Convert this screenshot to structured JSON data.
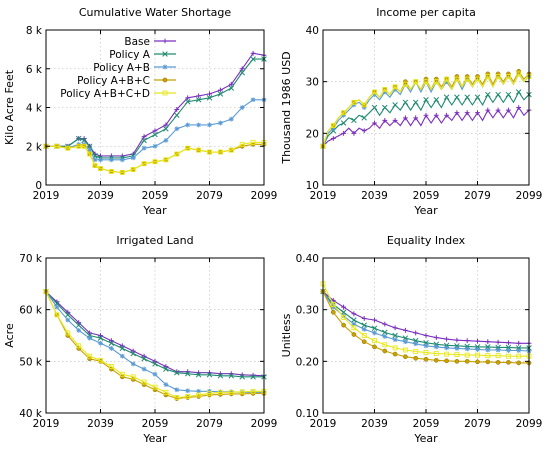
{
  "legend_labels": [
    "Base",
    "Policy A",
    "Policy A+B",
    "Policy A+B+C",
    "Policy A+B+C+D"
  ],
  "series_colors": [
    "#7b2fbe",
    "#1f8a70",
    "#5b9bd5",
    "#c9a100",
    "#e8e81a"
  ],
  "series_markers": [
    "plus",
    "x",
    "star",
    "circle",
    "square"
  ],
  "chart_data": [
    {
      "type": "line",
      "title": "Cumulative Water Shortage",
      "xlabel": "Year",
      "ylabel": "Kilo Acre Feet",
      "xlim": [
        2019,
        2099
      ],
      "ylim": [
        0,
        8
      ],
      "x_ticks": [
        2019,
        2039,
        2059,
        2079,
        2099
      ],
      "y_ticks": [
        0,
        2,
        4,
        6,
        8
      ],
      "y_tick_labels": [
        "0",
        "2 k",
        "4 k",
        "6 k",
        "8 k"
      ],
      "grid": true,
      "legend": "top-left",
      "x": [
        2019,
        2023,
        2027,
        2031,
        2033,
        2035,
        2037,
        2039,
        2043,
        2047,
        2051,
        2055,
        2059,
        2063,
        2067,
        2071,
        2075,
        2079,
        2083,
        2087,
        2091,
        2095,
        2099
      ],
      "series": [
        {
          "name": "Base",
          "values": [
            2.0,
            2.0,
            2.0,
            2.4,
            2.4,
            2.0,
            1.6,
            1.5,
            1.5,
            1.5,
            1.6,
            2.5,
            2.8,
            3.1,
            3.9,
            4.5,
            4.6,
            4.7,
            4.9,
            5.2,
            6.0,
            6.8,
            6.7
          ]
        },
        {
          "name": "Policy A",
          "values": [
            2.0,
            2.0,
            2.0,
            2.4,
            2.3,
            2.0,
            1.5,
            1.4,
            1.4,
            1.4,
            1.5,
            2.3,
            2.6,
            2.9,
            3.6,
            4.3,
            4.4,
            4.5,
            4.7,
            5.0,
            5.8,
            6.5,
            6.5
          ]
        },
        {
          "name": "Policy A+B",
          "values": [
            2.0,
            2.0,
            1.9,
            2.1,
            2.1,
            1.8,
            1.3,
            1.3,
            1.3,
            1.3,
            1.4,
            1.9,
            2.0,
            2.3,
            2.9,
            3.1,
            3.1,
            3.1,
            3.2,
            3.4,
            4.0,
            4.4,
            4.4
          ]
        },
        {
          "name": "Policy A+B+C",
          "values": [
            2.0,
            2.0,
            1.9,
            2.0,
            2.0,
            1.6,
            1.0,
            0.85,
            0.7,
            0.65,
            0.8,
            1.1,
            1.2,
            1.3,
            1.6,
            1.9,
            1.8,
            1.7,
            1.7,
            1.8,
            2.0,
            2.1,
            2.1
          ]
        },
        {
          "name": "Policy A+B+C+D",
          "values": [
            2.0,
            2.0,
            1.9,
            2.0,
            2.0,
            1.6,
            1.0,
            0.85,
            0.7,
            0.65,
            0.8,
            1.1,
            1.2,
            1.3,
            1.6,
            1.9,
            1.8,
            1.7,
            1.7,
            1.8,
            2.1,
            2.2,
            2.2
          ]
        }
      ]
    },
    {
      "type": "line",
      "title": "Income per capita",
      "xlabel": "Year",
      "ylabel": "Thousand 1986 USD",
      "xlim": [
        2019,
        2099
      ],
      "ylim": [
        10,
        40
      ],
      "x_ticks": [
        2019,
        2039,
        2059,
        2079,
        2099
      ],
      "y_ticks": [
        10,
        20,
        30,
        40
      ],
      "y_tick_labels": [
        "10",
        "20",
        "30",
        "40"
      ],
      "grid": true,
      "x": [
        2019,
        2021,
        2023,
        2025,
        2027,
        2029,
        2031,
        2033,
        2035,
        2037,
        2039,
        2041,
        2043,
        2045,
        2047,
        2049,
        2051,
        2053,
        2055,
        2057,
        2059,
        2061,
        2063,
        2065,
        2067,
        2069,
        2071,
        2073,
        2075,
        2077,
        2079,
        2081,
        2083,
        2085,
        2087,
        2089,
        2091,
        2093,
        2095,
        2097,
        2099
      ],
      "series": [
        {
          "name": "Base",
          "values": [
            17.5,
            18.5,
            19.0,
            19.5,
            20.0,
            21.0,
            20.0,
            21.0,
            20.5,
            21.0,
            22.0,
            21.0,
            22.5,
            21.5,
            22.5,
            21.5,
            23.0,
            21.5,
            23.0,
            21.5,
            23.5,
            22.0,
            23.5,
            22.0,
            23.5,
            22.5,
            24.0,
            22.5,
            24.0,
            22.5,
            24.0,
            22.5,
            24.5,
            23.0,
            24.5,
            23.0,
            24.5,
            23.0,
            25.0,
            23.5,
            24.5
          ]
        },
        {
          "name": "Policy A",
          "values": [
            17.5,
            19.5,
            20.5,
            21.5,
            22.0,
            23.0,
            22.5,
            23.5,
            23.0,
            24.0,
            25.0,
            23.5,
            25.0,
            24.0,
            25.5,
            24.5,
            26.0,
            24.5,
            26.0,
            24.5,
            26.5,
            25.0,
            26.5,
            25.0,
            27.0,
            25.5,
            27.0,
            25.5,
            27.0,
            25.5,
            27.0,
            25.5,
            27.5,
            26.0,
            27.5,
            26.0,
            27.5,
            26.0,
            28.0,
            26.5,
            27.5
          ]
        },
        {
          "name": "Policy A+B",
          "values": [
            17.5,
            20.0,
            21.0,
            22.5,
            23.5,
            24.5,
            25.5,
            26.0,
            25.0,
            26.5,
            27.5,
            26.5,
            28.0,
            27.0,
            28.5,
            27.5,
            29.5,
            28.0,
            30.0,
            28.0,
            30.0,
            28.0,
            30.0,
            28.5,
            30.0,
            28.5,
            30.5,
            28.5,
            30.5,
            29.0,
            30.5,
            29.0,
            31.0,
            29.0,
            31.0,
            29.5,
            31.0,
            29.5,
            31.5,
            30.0,
            31.0
          ]
        },
        {
          "name": "Policy A+B+C",
          "values": [
            17.5,
            20.5,
            21.5,
            23.0,
            24.0,
            25.0,
            26.0,
            26.5,
            25.5,
            27.0,
            28.0,
            27.0,
            28.5,
            27.5,
            29.0,
            28.0,
            30.0,
            28.5,
            30.0,
            28.5,
            30.5,
            28.5,
            30.5,
            29.0,
            30.5,
            29.0,
            31.0,
            29.0,
            31.0,
            29.5,
            31.0,
            29.5,
            31.5,
            29.5,
            31.5,
            30.0,
            31.5,
            30.0,
            32.0,
            30.5,
            31.5
          ]
        },
        {
          "name": "Policy A+B+C+D",
          "values": [
            17.5,
            20.5,
            21.5,
            23.0,
            24.0,
            25.0,
            26.0,
            26.5,
            25.5,
            27.0,
            28.0,
            27.0,
            28.5,
            27.5,
            29.0,
            28.0,
            29.5,
            28.5,
            30.0,
            28.5,
            30.0,
            28.5,
            30.0,
            28.5,
            30.5,
            28.5,
            30.5,
            29.0,
            30.5,
            29.0,
            30.5,
            29.0,
            31.0,
            29.0,
            31.0,
            29.5,
            31.0,
            29.5,
            31.5,
            30.0,
            31.0
          ]
        }
      ]
    },
    {
      "type": "line",
      "title": "Irrigated Land",
      "xlabel": "Year",
      "ylabel": "Acre",
      "xlim": [
        2019,
        2099
      ],
      "ylim": [
        40,
        70
      ],
      "x_ticks": [
        2019,
        2039,
        2059,
        2079,
        2099
      ],
      "y_ticks": [
        40,
        50,
        60,
        70
      ],
      "y_tick_labels": [
        "40 k",
        "50 k",
        "60 k",
        "70 k"
      ],
      "grid": true,
      "x": [
        2019,
        2023,
        2027,
        2031,
        2035,
        2039,
        2043,
        2047,
        2051,
        2055,
        2059,
        2063,
        2067,
        2071,
        2075,
        2079,
        2083,
        2087,
        2091,
        2095,
        2099
      ],
      "series": [
        {
          "name": "Base",
          "values": [
            63.5,
            61.5,
            59.5,
            57.5,
            55.5,
            55.0,
            54.0,
            53.0,
            52.0,
            51.0,
            50.0,
            49.0,
            48.0,
            48.0,
            47.8,
            47.8,
            47.6,
            47.6,
            47.4,
            47.3,
            47.2
          ]
        },
        {
          "name": "Policy A",
          "values": [
            63.5,
            61.2,
            59.0,
            57.0,
            55.0,
            54.5,
            53.5,
            52.5,
            51.5,
            50.5,
            49.5,
            48.5,
            47.8,
            47.6,
            47.4,
            47.4,
            47.2,
            47.2,
            47.0,
            47.0,
            47.0
          ]
        },
        {
          "name": "Policy A+B",
          "values": [
            63.5,
            60.5,
            58.0,
            56.0,
            54.5,
            53.5,
            52.5,
            51.0,
            49.5,
            48.5,
            47.5,
            45.5,
            44.5,
            44.3,
            44.2,
            44.2,
            44.1,
            44.1,
            44.0,
            44.0,
            44.0
          ]
        },
        {
          "name": "Policy A+B+C",
          "values": [
            63.5,
            59.0,
            55.0,
            52.5,
            50.5,
            50.0,
            48.5,
            47.0,
            46.5,
            45.5,
            44.5,
            43.5,
            42.8,
            43.0,
            43.2,
            43.5,
            43.6,
            43.7,
            43.7,
            43.8,
            43.8
          ]
        },
        {
          "name": "Policy A+B+C+D",
          "values": [
            63.5,
            59.0,
            55.5,
            53.0,
            51.0,
            50.2,
            49.0,
            47.5,
            47.0,
            46.0,
            45.0,
            44.0,
            43.0,
            43.2,
            43.5,
            43.8,
            44.0,
            44.0,
            44.1,
            44.2,
            44.2
          ]
        }
      ]
    },
    {
      "type": "line",
      "title": "Equality Index",
      "xlabel": "Year",
      "ylabel": "Unitless",
      "xlim": [
        2019,
        2099
      ],
      "ylim": [
        0.1,
        0.4
      ],
      "x_ticks": [
        2019,
        2039,
        2059,
        2079,
        2099
      ],
      "y_ticks": [
        0.1,
        0.2,
        0.3,
        0.4
      ],
      "y_tick_labels": [
        "0.10",
        "0.20",
        "0.30",
        "0.40"
      ],
      "grid": true,
      "x": [
        2019,
        2023,
        2027,
        2031,
        2035,
        2039,
        2043,
        2047,
        2051,
        2055,
        2059,
        2063,
        2067,
        2071,
        2075,
        2079,
        2083,
        2087,
        2091,
        2095,
        2099
      ],
      "series": [
        {
          "name": "Base",
          "values": [
            0.335,
            0.318,
            0.305,
            0.292,
            0.283,
            0.28,
            0.272,
            0.265,
            0.26,
            0.255,
            0.25,
            0.246,
            0.243,
            0.241,
            0.24,
            0.239,
            0.238,
            0.237,
            0.236,
            0.235,
            0.235
          ]
        },
        {
          "name": "Policy A",
          "values": [
            0.335,
            0.31,
            0.295,
            0.28,
            0.27,
            0.264,
            0.256,
            0.25,
            0.245,
            0.24,
            0.236,
            0.233,
            0.231,
            0.23,
            0.229,
            0.228,
            0.228,
            0.227,
            0.227,
            0.226,
            0.226
          ]
        },
        {
          "name": "Policy A+B",
          "values": [
            0.335,
            0.305,
            0.288,
            0.272,
            0.262,
            0.255,
            0.248,
            0.242,
            0.238,
            0.234,
            0.23,
            0.228,
            0.226,
            0.225,
            0.224,
            0.223,
            0.222,
            0.222,
            0.221,
            0.221,
            0.22
          ]
        },
        {
          "name": "Policy A+B+C",
          "values": [
            0.335,
            0.295,
            0.27,
            0.252,
            0.238,
            0.228,
            0.22,
            0.214,
            0.209,
            0.206,
            0.204,
            0.202,
            0.201,
            0.2,
            0.2,
            0.199,
            0.199,
            0.198,
            0.198,
            0.197,
            0.197
          ]
        },
        {
          "name": "Policy A+B+C+D",
          "values": [
            0.35,
            0.31,
            0.285,
            0.265,
            0.25,
            0.24,
            0.232,
            0.226,
            0.222,
            0.219,
            0.217,
            0.215,
            0.214,
            0.213,
            0.212,
            0.212,
            0.211,
            0.211,
            0.21,
            0.21,
            0.21
          ]
        }
      ]
    }
  ]
}
